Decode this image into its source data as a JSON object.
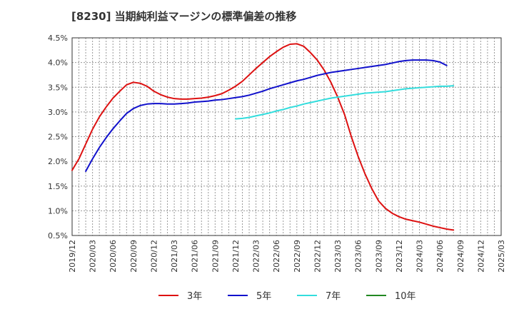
{
  "chart_data": {
    "type": "line",
    "title": "[8230]  当期純利益マージンの標準偏差の推移",
    "xlabel": "",
    "ylabel": "",
    "x_ticks": [
      "2019/12",
      "2020/03",
      "2020/06",
      "2020/09",
      "2020/12",
      "2021/03",
      "2021/06",
      "2021/09",
      "2021/12",
      "2022/03",
      "2022/06",
      "2022/09",
      "2022/12",
      "2023/03",
      "2023/06",
      "2023/09",
      "2023/12",
      "2024/03",
      "2024/06",
      "2024/09",
      "2024/12",
      "2025/03"
    ],
    "y_ticks": [
      "0.5%",
      "1.0%",
      "1.5%",
      "2.0%",
      "2.5%",
      "3.0%",
      "3.5%",
      "4.0%",
      "4.5%"
    ],
    "ylim": [
      0.5,
      4.5
    ],
    "grid": true,
    "legend_position": "bottom",
    "series": [
      {
        "name": "3年",
        "color": "#dd1111",
        "start_index": 0,
        "values": [
          1.82,
          2.05,
          2.35,
          2.65,
          2.9,
          3.1,
          3.28,
          3.42,
          3.55,
          3.6,
          3.58,
          3.52,
          3.42,
          3.35,
          3.3,
          3.27,
          3.26,
          3.26,
          3.27,
          3.28,
          3.3,
          3.33,
          3.37,
          3.44,
          3.52,
          3.62,
          3.75,
          3.88,
          4.0,
          4.12,
          4.22,
          4.31,
          4.37,
          4.38,
          4.33,
          4.2,
          4.05,
          3.85,
          3.6,
          3.3,
          2.95,
          2.5,
          2.1,
          1.75,
          1.45,
          1.2,
          1.05,
          0.95,
          0.88,
          0.83,
          0.8,
          0.77,
          0.73,
          0.69,
          0.66,
          0.63,
          0.61
        ]
      },
      {
        "name": "5年",
        "color": "#1111cc",
        "start_index": 2,
        "values": [
          1.8,
          2.05,
          2.28,
          2.48,
          2.66,
          2.82,
          2.97,
          3.07,
          3.13,
          3.16,
          3.17,
          3.17,
          3.16,
          3.16,
          3.17,
          3.18,
          3.2,
          3.21,
          3.22,
          3.24,
          3.25,
          3.27,
          3.29,
          3.31,
          3.34,
          3.38,
          3.42,
          3.47,
          3.51,
          3.55,
          3.59,
          3.63,
          3.66,
          3.7,
          3.74,
          3.77,
          3.8,
          3.82,
          3.84,
          3.86,
          3.88,
          3.9,
          3.92,
          3.94,
          3.96,
          3.99,
          4.02,
          4.04,
          4.05,
          4.05,
          4.05,
          4.04,
          4.01,
          3.94
        ]
      },
      {
        "name": "7年",
        "color": "#33dddd",
        "start_index": 24,
        "values": [
          2.86,
          2.87,
          2.89,
          2.92,
          2.95,
          2.98,
          3.02,
          3.05,
          3.09,
          3.12,
          3.16,
          3.19,
          3.22,
          3.25,
          3.28,
          3.3,
          3.32,
          3.34,
          3.36,
          3.38,
          3.39,
          3.4,
          3.41,
          3.43,
          3.45,
          3.47,
          3.48,
          3.49,
          3.5,
          3.51,
          3.52,
          3.52,
          3.53
        ]
      },
      {
        "name": "10年",
        "color": "#228822",
        "start_index": 0,
        "values": []
      }
    ]
  }
}
